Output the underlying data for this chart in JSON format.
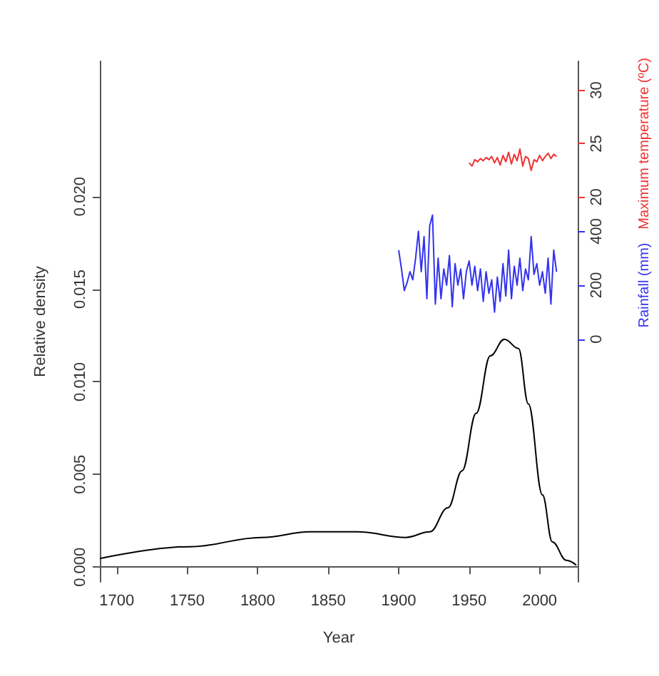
{
  "chart_data": {
    "type": "line",
    "xlabel": "Year",
    "ylabel": "Relative density",
    "y2label": "Rainfall (mm)",
    "y3label": "Maximum temperature (ºC)",
    "xlim": [
      1688,
      2027
    ],
    "xticks": [
      1700,
      1750,
      1800,
      1850,
      1900,
      1950,
      2000
    ],
    "ylim": [
      -0.0008,
      0.0273
    ],
    "yticks": [
      {
        "value": 0,
        "label": "0.000"
      },
      {
        "value": 0.005,
        "label": "0.005"
      },
      {
        "value": 0.01,
        "label": "0.010"
      },
      {
        "value": 0.015,
        "label": "0.015"
      },
      {
        "value": 0.02,
        "label": "0.020"
      }
    ],
    "y2lim": [
      -900,
      1030
    ],
    "y2ticks": [
      0,
      200,
      400
    ],
    "y3lim": [
      -16,
      32.7
    ],
    "y3ticks": [
      20,
      25,
      30
    ],
    "grid": false,
    "marker": "none",
    "line_style": "solid",
    "series": [
      {
        "color": "#000000",
        "x": [
          1688,
          1752,
          1803,
          1837,
          1871,
          1905,
          1922,
          1935,
          1945,
          1955,
          1965,
          1975,
          1985,
          1992,
          2002,
          2009,
          2019,
          2026
        ],
        "values": [
          0.00046,
          0.0011,
          0.0016,
          0.0019,
          0.0019,
          0.0016,
          0.0019,
          0.0032,
          0.0052,
          0.0083,
          0.0114,
          0.0123,
          0.0118,
          0.0088,
          0.0039,
          0.00136,
          0.00036,
          0.0001
        ]
      },
      {
        "color": "#3333ee",
        "axis": "y2",
        "x": [
          1900,
          1902,
          1904,
          1906,
          1908,
          1910,
          1912,
          1914,
          1916,
          1918,
          1920,
          1922,
          1924,
          1926,
          1928,
          1930,
          1932,
          1934,
          1936,
          1938,
          1940,
          1942,
          1944,
          1946,
          1948,
          1950,
          1952,
          1954,
          1956,
          1958,
          1960,
          1962,
          1964,
          1966,
          1968,
          1970,
          1972,
          1974,
          1976,
          1978,
          1980,
          1982,
          1984,
          1986,
          1988,
          1990,
          1992,
          1994,
          1996,
          1998,
          2000,
          2002,
          2004,
          2006,
          2008,
          2010,
          2012
        ],
        "values": [
          330,
          260,
          180,
          210,
          250,
          220,
          300,
          400,
          250,
          380,
          150,
          420,
          460,
          130,
          300,
          150,
          260,
          200,
          310,
          120,
          280,
          200,
          260,
          150,
          250,
          290,
          200,
          270,
          180,
          260,
          140,
          250,
          170,
          220,
          100,
          230,
          140,
          280,
          160,
          330,
          150,
          270,
          200,
          300,
          180,
          260,
          220,
          380,
          240,
          280,
          200,
          250,
          170,
          300,
          130,
          330,
          250
        ]
      },
      {
        "color": "#ee3333",
        "axis": "y3",
        "x": [
          1950,
          1952,
          1954,
          1956,
          1958,
          1960,
          1962,
          1964,
          1966,
          1968,
          1970,
          1972,
          1974,
          1976,
          1978,
          1980,
          1982,
          1984,
          1986,
          1988,
          1990,
          1992,
          1994,
          1996,
          1998,
          2000,
          2002,
          2004,
          2006,
          2008,
          2010,
          2012
        ],
        "values": [
          23.2,
          22.9,
          23.5,
          23.3,
          23.6,
          23.4,
          23.7,
          23.5,
          23.8,
          23.2,
          23.7,
          23.0,
          23.9,
          23.3,
          24.2,
          23.1,
          24.0,
          23.4,
          24.5,
          22.9,
          23.8,
          23.6,
          22.5,
          23.5,
          23.3,
          23.9,
          23.4,
          23.8,
          24.1,
          23.6,
          24.0,
          23.8
        ]
      }
    ]
  }
}
